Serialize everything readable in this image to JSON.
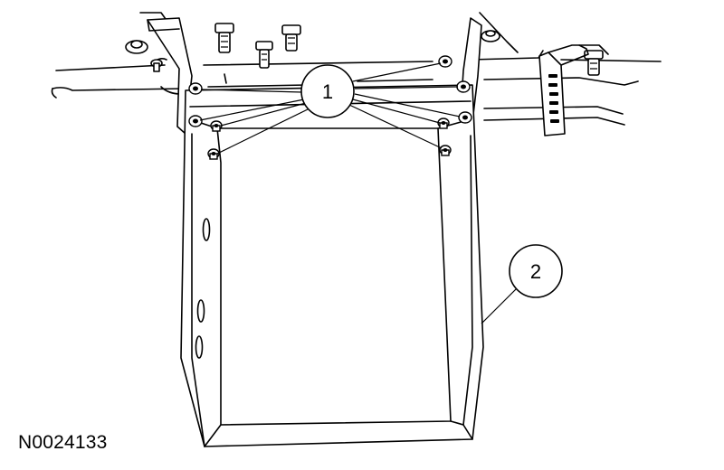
{
  "figure": {
    "id_label": "N0024133"
  },
  "callouts": [
    {
      "number": "1",
      "meaning": "fasteners"
    },
    {
      "number": "2",
      "meaning": "shield"
    }
  ],
  "colors": {
    "line": "#000000",
    "background": "#ffffff"
  }
}
